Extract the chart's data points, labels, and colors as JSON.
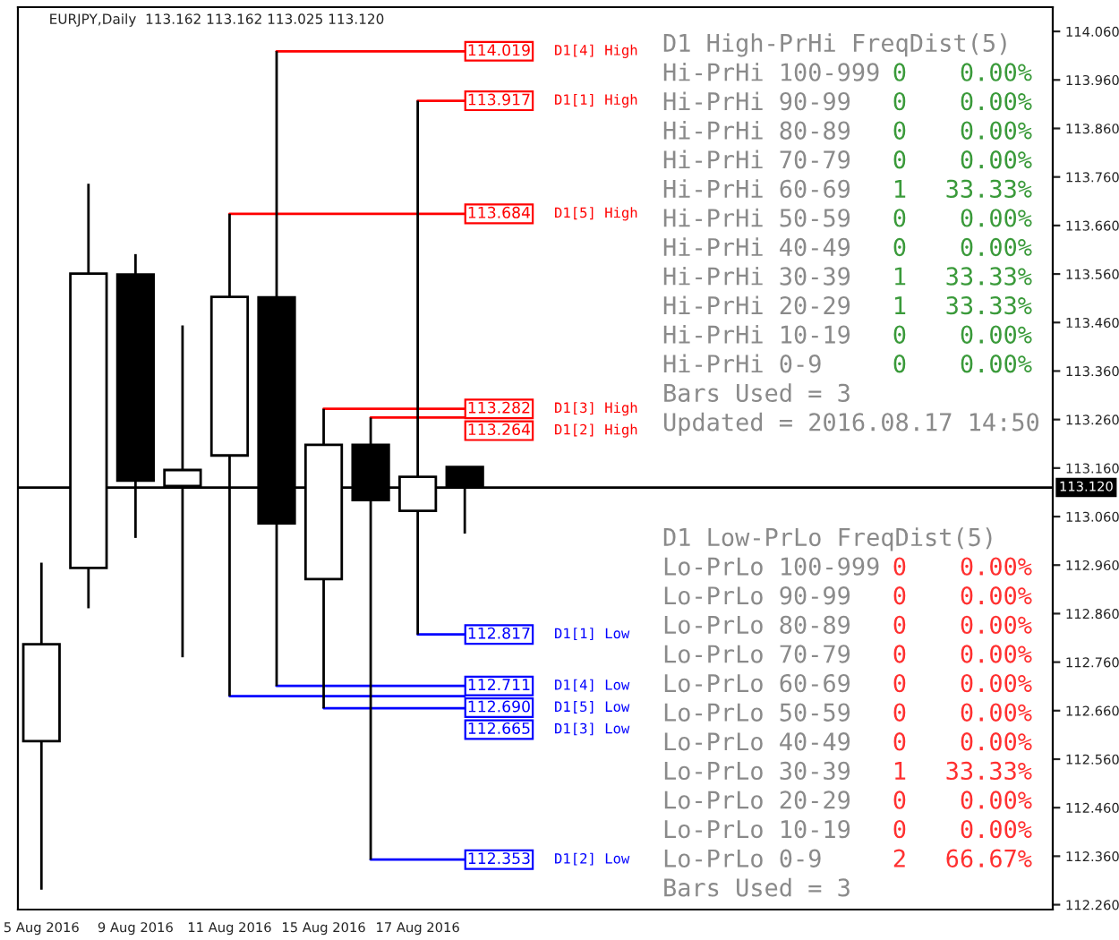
{
  "chart_data": [
    {
      "type": "candlestick",
      "categories": [
        "5 Aug 2016",
        null,
        "9 Aug 2016",
        null,
        "11 Aug 2016",
        null,
        "15 Aug 2016",
        null,
        "17 Aug 2016",
        null,
        null,
        null,
        null,
        null,
        null,
        null,
        null,
        null,
        null,
        null,
        null,
        null
      ],
      "ohlc": [
        [
          112.597,
          112.965,
          112.291,
          112.797
        ],
        [
          112.954,
          113.746,
          112.871,
          113.561
        ],
        [
          113.559,
          113.601,
          113.016,
          113.134
        ],
        [
          113.123,
          113.454,
          112.77,
          113.156
        ],
        [
          113.186,
          113.684,
          112.69,
          113.513
        ],
        [
          113.512,
          114.019,
          112.711,
          113.046
        ],
        [
          112.931,
          113.282,
          112.665,
          113.208
        ],
        [
          113.208,
          113.264,
          112.353,
          113.094
        ],
        [
          113.072,
          113.917,
          112.817,
          113.142
        ],
        [
          113.162,
          113.162,
          113.025,
          113.12
        ],
        null,
        null,
        null,
        null,
        null,
        null,
        null,
        null,
        null,
        null,
        null,
        null
      ],
      "colors": [
        "#ffffff",
        "#ffffff",
        "#000000",
        "#ffffff",
        "#ffffff",
        "#000000",
        "#ffffff",
        "#000000",
        "#ffffff",
        "#000000",
        null,
        null,
        null,
        null,
        null,
        null,
        null,
        null,
        null,
        null,
        null,
        null
      ],
      "ylim": [
        112.25,
        114.11
      ],
      "yticks": [
        {
          "value": 112.26,
          "label": "112.260"
        },
        {
          "value": 112.36,
          "label": "112.360"
        },
        {
          "value": 112.46,
          "label": "112.460"
        },
        {
          "value": 112.56,
          "label": "112.560"
        },
        {
          "value": 112.66,
          "label": "112.660"
        },
        {
          "value": 112.76,
          "label": "112.760"
        },
        {
          "value": 112.86,
          "label": "112.860"
        },
        {
          "value": 112.96,
          "label": "112.960"
        },
        {
          "value": 113.06,
          "label": "113.060"
        },
        {
          "value": 113.16,
          "label": "113.160"
        },
        {
          "value": 113.26,
          "label": "113.260"
        },
        {
          "value": 113.36,
          "label": "113.360"
        },
        {
          "value": 113.46,
          "label": "113.460"
        },
        {
          "value": 113.56,
          "label": "113.560"
        },
        {
          "value": 113.66,
          "label": "113.660"
        },
        {
          "value": 113.76,
          "label": "113.760"
        },
        {
          "value": 113.86,
          "label": "113.860"
        },
        {
          "value": 113.96,
          "label": "113.960"
        },
        {
          "value": 114.06,
          "label": "114.060"
        }
      ],
      "ref_lines": [
        {
          "axis": "y",
          "value": 113.12,
          "label": "113.120",
          "color": "#000000"
        },
        {
          "axis": "y",
          "value": 114.019,
          "label": "114.019",
          "color": "#ff0000"
        },
        {
          "axis": "y",
          "value": 113.917,
          "label": "113.917",
          "color": "#ff0000"
        },
        {
          "axis": "y",
          "value": 113.684,
          "label": "113.684",
          "color": "#ff0000"
        },
        {
          "axis": "y",
          "value": 113.282,
          "label": "113.282",
          "color": "#ff0000"
        },
        {
          "axis": "y",
          "value": 113.264,
          "label": "113.264",
          "color": "#ff0000"
        },
        {
          "axis": "y",
          "value": 112.817,
          "label": "112.817",
          "color": "#0000ff"
        },
        {
          "axis": "y",
          "value": 112.711,
          "label": "112.711",
          "color": "#0000ff"
        },
        {
          "axis": "y",
          "value": 112.69,
          "label": "112.690",
          "color": "#0000ff"
        },
        {
          "axis": "y",
          "value": 112.665,
          "label": "112.665",
          "color": "#0000ff"
        },
        {
          "axis": "y",
          "value": 112.353,
          "label": "112.353",
          "color": "#0000ff"
        }
      ],
      "grid": false,
      "annotations": [
        "EURJPY,Daily  113.162 113.162 113.025 113.120",
        "D1[4] High",
        "D1[1] High",
        "D1[5] High",
        "D1[3] High",
        "D1[2] High",
        "D1[1] Low",
        "D1[4] Low",
        "D1[5] Low",
        "D1[3] Low",
        "D1[2] Low"
      ]
    },
    {
      "type": "other",
      "title": "D1 High-PrHi FreqDist(5)",
      "categories": [
        "Hi-PrHi 100-999",
        "Hi-PrHi 90-99",
        "Hi-PrHi 80-89",
        "Hi-PrHi 70-79",
        "Hi-PrHi 60-69",
        "Hi-PrHi 50-59",
        "Hi-PrHi 40-49",
        "Hi-PrHi 30-39",
        "Hi-PrHi 20-29",
        "Hi-PrHi 10-19",
        "Hi-PrHi 0-9"
      ],
      "series": [
        {
          "color": "#3a9a3a",
          "values": [
            0,
            0,
            0,
            0,
            1,
            0,
            0,
            1,
            1,
            0,
            0
          ]
        }
      ],
      "data_labels": true,
      "annotations": [
        "0.00%",
        "0.00%",
        "0.00%",
        "0.00%",
        "33.33%",
        "0.00%",
        "0.00%",
        "33.33%",
        "33.33%",
        "0.00%",
        "0.00%",
        "Bars Used = 3",
        "Updated = 2016.08.17 14:50"
      ]
    },
    {
      "type": "other",
      "title": "D1 Low-PrLo FreqDist(5)",
      "categories": [
        "Lo-PrLo 100-999",
        "Lo-PrLo 90-99",
        "Lo-PrLo 80-89",
        "Lo-PrLo 70-79",
        "Lo-PrLo 60-69",
        "Lo-PrLo 50-59",
        "Lo-PrLo 40-49",
        "Lo-PrLo 30-39",
        "Lo-PrLo 20-29",
        "Lo-PrLo 10-19",
        "Lo-PrLo 0-9"
      ],
      "series": [
        {
          "color": "#ff3030",
          "values": [
            0,
            0,
            0,
            0,
            0,
            0,
            0,
            1,
            0,
            0,
            2
          ]
        }
      ],
      "data_labels": true,
      "annotations": [
        "0.00%",
        "0.00%",
        "0.00%",
        "0.00%",
        "0.00%",
        "0.00%",
        "0.00%",
        "33.33%",
        "0.00%",
        "0.00%",
        "66.67%",
        "Bars Used = 3"
      ]
    }
  ]
}
